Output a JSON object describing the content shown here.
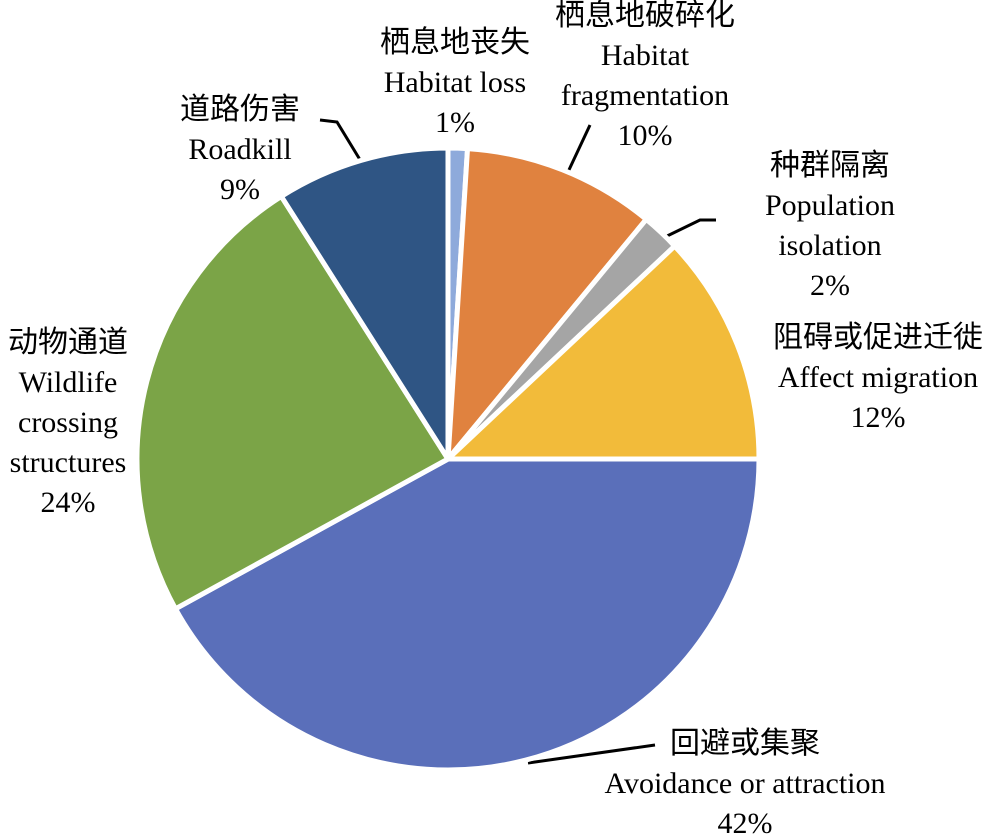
{
  "chart_data": {
    "type": "pie",
    "categories_zh": [
      "栖息地丧失",
      "栖息地破碎化",
      "种群隔离",
      "阻碍或促进迁徙",
      "回避或集聚",
      "动物通道",
      "道路伤害"
    ],
    "categories": [
      [
        "Habitat loss"
      ],
      [
        "Habitat",
        "fragmentation"
      ],
      [
        "Population",
        "isolation"
      ],
      [
        "Affect migration"
      ],
      [
        "Avoidance or attraction"
      ],
      [
        "Wildlife",
        "crossing",
        "structures"
      ],
      [
        "Roadkill"
      ]
    ],
    "values": [
      1,
      10,
      2,
      12,
      42,
      24,
      9
    ],
    "value_labels": [
      "1%",
      "10%",
      "2%",
      "12%",
      "42%",
      "24%",
      "9%"
    ],
    "colors": [
      "#8eaadb",
      "#e0823f",
      "#a5a5a5",
      "#f2bb3a",
      "#5a6fba",
      "#7ba447",
      "#2f5584"
    ]
  }
}
